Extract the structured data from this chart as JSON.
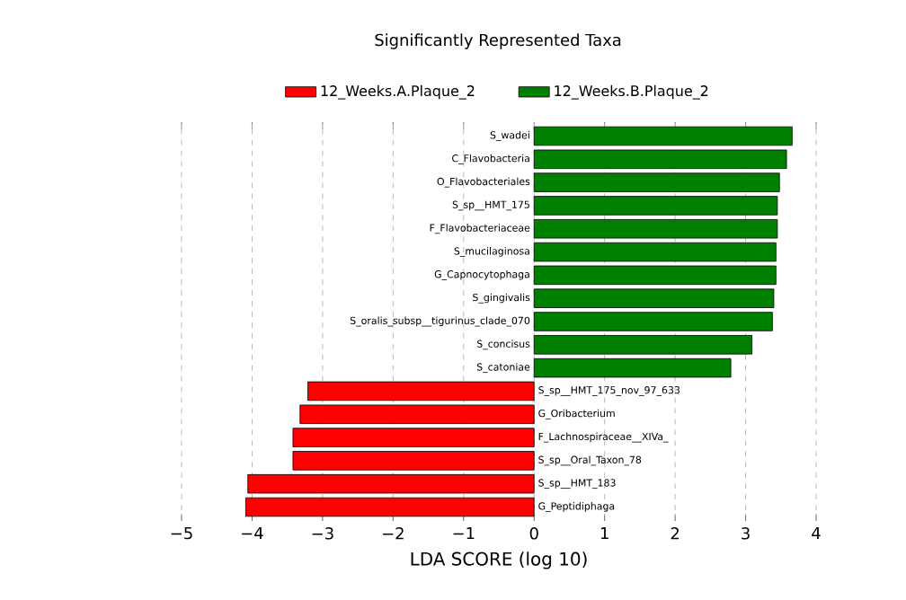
{
  "chart_data": {
    "type": "bar",
    "orientation": "horizontal",
    "title": "Significantly Represented Taxa",
    "xlabel": "LDA SCORE (log 10)",
    "categories": [
      "S_wadei",
      "C_Flavobacteria",
      "O_Flavobacteriales",
      "S_sp__HMT_175",
      "F_Flavobacteriaceae",
      "S_mucilaginosa",
      "G_Capnocytophaga",
      "S_gingivalis",
      "S_oralis_subsp__tigurinus_clade_070",
      "S_concisus",
      "S_catoniae",
      "S_sp__HMT_175_nov_97_633",
      "G_Oribacterium",
      "F_Lachnospiraceae__XIVa_",
      "S_sp__Oral_Taxon_78",
      "S_sp__HMT_183",
      "G_Peptidiphaga"
    ],
    "series": [
      {
        "name": "12_Weeks.A.Plaque_2",
        "color": "#ff0000",
        "values": [
          null,
          null,
          null,
          null,
          null,
          null,
          null,
          null,
          null,
          null,
          null,
          -3.21,
          -3.32,
          -3.42,
          -3.42,
          -4.06,
          -4.09
        ]
      },
      {
        "name": "12_Weeks.B.Plaque_2",
        "color": "#008000",
        "values": [
          3.66,
          3.58,
          3.48,
          3.45,
          3.45,
          3.43,
          3.43,
          3.4,
          3.38,
          3.09,
          2.79,
          null,
          null,
          null,
          null,
          null,
          null
        ]
      }
    ],
    "xlim": [
      -5,
      4
    ],
    "xticks": [
      {
        "value": -5,
        "label": "−5"
      },
      {
        "value": -4,
        "label": "−4"
      },
      {
        "value": -3,
        "label": "−3"
      },
      {
        "value": -2,
        "label": "−2"
      },
      {
        "value": -1,
        "label": "−1"
      },
      0,
      1,
      2,
      3,
      4
    ],
    "grid": "x",
    "legend": "top"
  }
}
